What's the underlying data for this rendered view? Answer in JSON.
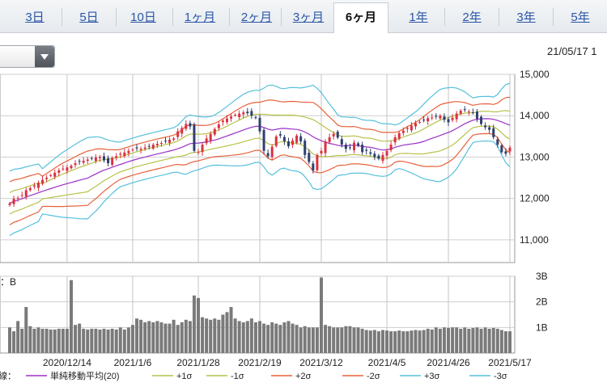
{
  "tabs": [
    {
      "label": "3日",
      "active": false
    },
    {
      "label": "5日",
      "active": false
    },
    {
      "label": "10日",
      "active": false
    },
    {
      "label": "1ヶ月",
      "active": false
    },
    {
      "label": "2ヶ月",
      "active": false
    },
    {
      "label": "3ヶ月",
      "active": false
    },
    {
      "label": "6ヶ月",
      "active": true
    },
    {
      "label": "1年",
      "active": false
    },
    {
      "label": "2年",
      "active": false
    },
    {
      "label": "3年",
      "active": false
    },
    {
      "label": "5年",
      "active": false
    }
  ],
  "datestamp": "21/05/17 1",
  "chart_data": {
    "type": "candlestick",
    "price_axis": {
      "ticks": [
        11000,
        12000,
        13000,
        14000,
        15000
      ],
      "tick_labels": [
        "11,000",
        "12,000",
        "13,000",
        "14,000",
        "15,000"
      ],
      "ylim": [
        10450,
        15000
      ]
    },
    "volume_axis": {
      "ticks": [
        1,
        2,
        3
      ],
      "tick_labels": [
        "1B",
        "2B",
        "3B"
      ],
      "ylim": [
        0,
        3
      ],
      "label": "：B"
    },
    "x_tick_labels": [
      "2020/12/14",
      "2021/1/6",
      "2021/1/28",
      "2021/2/19",
      "2021/3/12",
      "2021/4/5",
      "2021/4/26",
      "2021/5/17"
    ],
    "x_tick_index": [
      14,
      30,
      46,
      61,
      76,
      92,
      107,
      122
    ],
    "grid": true,
    "closes": [
      11880,
      11990,
      12010,
      12080,
      12200,
      12250,
      12310,
      12380,
      12450,
      12500,
      12560,
      12620,
      12680,
      12720,
      12750,
      12790,
      12850,
      12900,
      12910,
      12940,
      12960,
      12990,
      13000,
      12920,
      12850,
      12980,
      13020,
      13080,
      13110,
      13150,
      13180,
      13210,
      13200,
      13230,
      13260,
      13300,
      13320,
      13340,
      13380,
      13420,
      13450,
      13620,
      13700,
      13800,
      13740,
      13150,
      13120,
      13300,
      13450,
      13560,
      13680,
      13790,
      13880,
      13930,
      13980,
      14020,
      14050,
      14080,
      14060,
      14000,
      13950,
      13620,
      13150,
      13020,
      13250,
      13500,
      13520,
      13380,
      13260,
      13400,
      13520,
      13380,
      13050,
      12880,
      12680,
      13050,
      13150,
      13380,
      13480,
      13560,
      13470,
      13300,
      13200,
      13220,
      13350,
      13280,
      13120,
      13150,
      13080,
      13000,
      12960,
      13050,
      13150,
      13300,
      13480,
      13580,
      13640,
      13700,
      13760,
      13820,
      13850,
      13900,
      13940,
      13960,
      13990,
      14000,
      13900,
      13840,
      13950,
      14050,
      14120,
      14150,
      14100,
      14080,
      13920,
      13800,
      13720,
      13660,
      13480,
      13300,
      13120,
      13080,
      13230
    ],
    "volume": [
      1.0,
      0.85,
      1.25,
      0.95,
      1.8,
      1.05,
      0.95,
      1.0,
      0.95,
      0.95,
      0.92,
      0.92,
      0.95,
      0.95,
      0.95,
      2.85,
      1.1,
      1.15,
      0.95,
      0.92,
      0.95,
      0.95,
      0.92,
      0.95,
      0.92,
      0.95,
      0.92,
      1.0,
      0.92,
      1.0,
      1.1,
      1.35,
      1.3,
      1.2,
      1.25,
      1.2,
      1.25,
      1.2,
      1.15,
      1.15,
      1.3,
      1.1,
      1.2,
      1.3,
      1.25,
      2.25,
      2.15,
      1.4,
      1.35,
      1.3,
      1.35,
      1.3,
      1.5,
      1.6,
      1.8,
      1.35,
      1.25,
      1.2,
      1.25,
      1.35,
      1.2,
      1.25,
      1.15,
      1.1,
      1.2,
      1.15,
      1.1,
      1.2,
      1.25,
      1.15,
      1.1,
      1.0,
      1.05,
      1.0,
      1.0,
      1.0,
      2.95,
      1.1,
      1.05,
      1.0,
      1.0,
      1.0,
      1.05,
      1.05,
      1.0,
      1.0,
      0.95,
      0.9,
      0.88,
      0.9,
      0.85,
      0.9,
      0.88,
      0.85,
      0.85,
      0.88,
      0.85,
      0.85,
      0.88,
      0.9,
      0.88,
      0.9,
      0.95,
      0.92,
      1.0,
      0.95,
      1.0,
      0.98,
      1.0,
      1.0,
      0.95,
      1.0,
      0.95,
      0.98,
      1.0,
      0.95,
      1.0,
      0.95,
      0.98,
      0.95,
      0.9,
      0.85,
      0.85
    ],
    "series": [
      {
        "name": "単純移動平均(20)",
        "color": "#9b30c8"
      },
      {
        "name": "+1σ",
        "color": "#b7c24a"
      },
      {
        "name": "-1σ",
        "color": "#b7c24a"
      },
      {
        "name": "+2σ",
        "color": "#e8613a"
      },
      {
        "name": "-2σ",
        "color": "#e8613a"
      },
      {
        "name": "+3σ",
        "color": "#55c0dc"
      },
      {
        "name": "-3σ",
        "color": "#55c0dc"
      }
    ],
    "up_color": "#d9323f",
    "down_color": "#2f3f6e",
    "legend_prefix": "線："
  }
}
